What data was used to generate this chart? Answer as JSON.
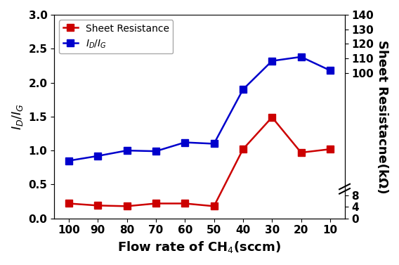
{
  "x": [
    100,
    90,
    80,
    70,
    60,
    50,
    40,
    30,
    20,
    10
  ],
  "id_ig": [
    0.85,
    0.92,
    1.0,
    0.99,
    1.12,
    1.1,
    1.9,
    2.32,
    2.38,
    2.18
  ],
  "sheet_res_left": [
    0.22,
    0.19,
    0.18,
    0.22,
    0.22,
    0.18,
    1.02,
    1.49,
    0.97,
    1.02
  ],
  "id_ig_color": "#0000cc",
  "sheet_res_color": "#cc0000",
  "ylabel_left": "$I_D/I_G$",
  "ylabel_right": "Sheet Resistacne(kΩ)",
  "xlabel": "Flow rate of CH$_4$(sccm)",
  "legend_sheet": "Sheet Resistance",
  "legend_idg": "$I_D/I_G$",
  "ylim_left": [
    0.0,
    3.0
  ],
  "yticks_left": [
    0.0,
    0.5,
    1.0,
    1.5,
    2.0,
    2.5,
    3.0
  ],
  "right_tick_labels": [
    "0",
    "4",
    "8",
    "100",
    "110",
    "120",
    "130",
    "140"
  ],
  "right_tick_positions_frac": [
    0.0,
    0.057,
    0.114,
    0.714,
    0.786,
    0.857,
    0.929,
    1.0
  ],
  "xlim": [
    105,
    5
  ],
  "xticks": [
    100,
    90,
    80,
    70,
    60,
    50,
    40,
    30,
    20,
    10
  ],
  "label_fontsize": 13,
  "tick_fontsize": 11,
  "legend_fontsize": 10,
  "linewidth": 1.8,
  "markersize": 7
}
